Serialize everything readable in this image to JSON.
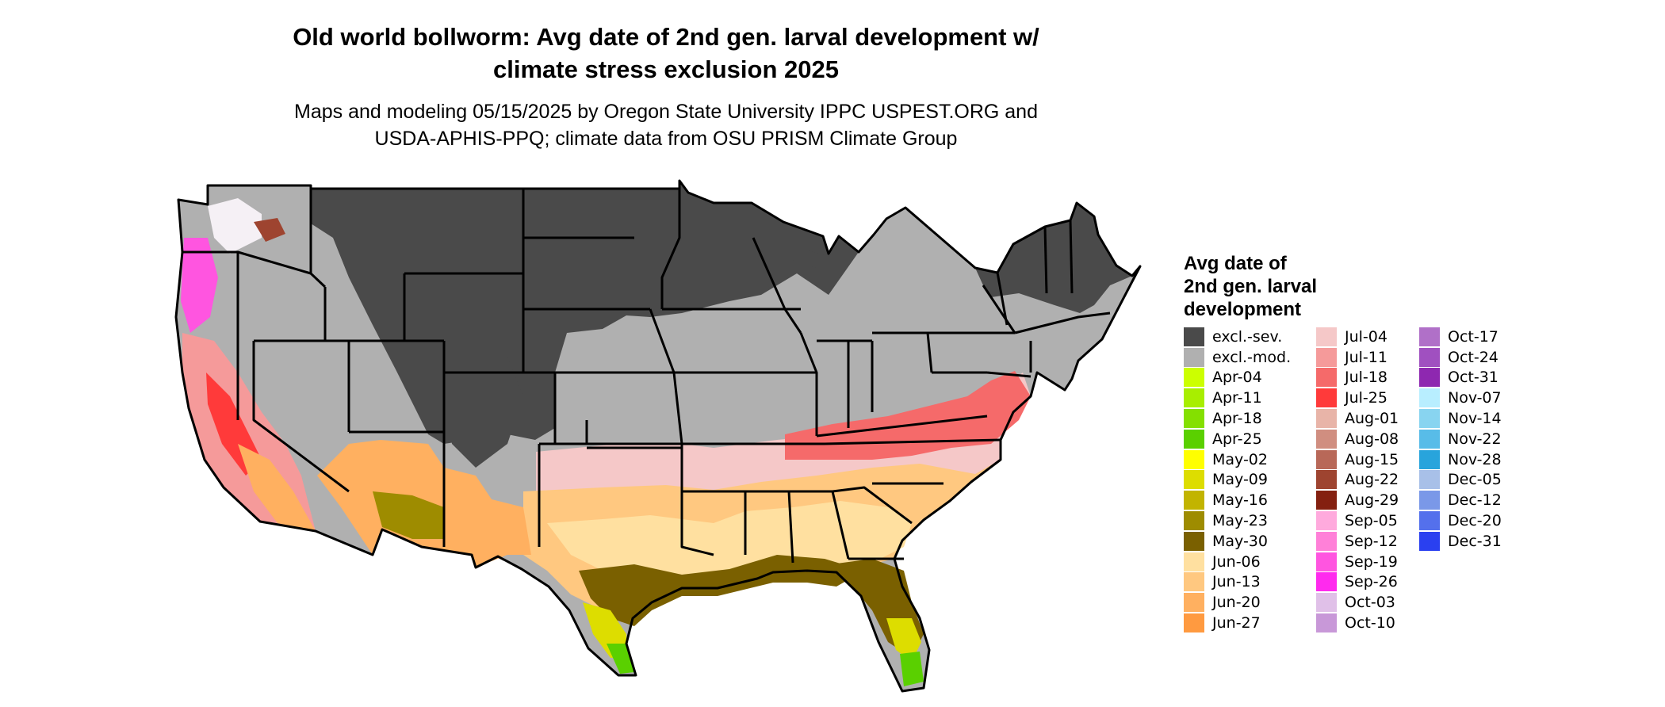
{
  "title_line1": "Old world bollworm: Avg date of 2nd gen. larval development w/",
  "title_line2": "climate stress exclusion 2025",
  "subtitle_line1": "Maps and modeling 05/15/2025 by Oregon State University IPPC USPEST.ORG and",
  "subtitle_line2": "USDA-APHIS-PPQ; climate data from OSU PRISM Climate Group",
  "legend": {
    "title_line1": "Avg date of",
    "title_line2": "2nd gen. larval",
    "title_line3": "development",
    "columns": [
      [
        {
          "label": "excl.-sev.",
          "color": "#4a4a4a"
        },
        {
          "label": "excl.-mod.",
          "color": "#b0b0b0"
        },
        {
          "label": "Apr-04",
          "color": "#ccff00"
        },
        {
          "label": "Apr-11",
          "color": "#a8ee00"
        },
        {
          "label": "Apr-18",
          "color": "#84e000"
        },
        {
          "label": "Apr-25",
          "color": "#5ad000"
        },
        {
          "label": "May-02",
          "color": "#ffff00"
        },
        {
          "label": "May-09",
          "color": "#dddd00"
        },
        {
          "label": "May-16",
          "color": "#c2b400"
        },
        {
          "label": "May-23",
          "color": "#9e8c00"
        },
        {
          "label": "May-30",
          "color": "#7a6000"
        },
        {
          "label": "Jun-06",
          "color": "#ffe0a0"
        },
        {
          "label": "Jun-13",
          "color": "#ffc880"
        },
        {
          "label": "Jun-20",
          "color": "#ffb060"
        },
        {
          "label": "Jun-27",
          "color": "#ff9a40"
        }
      ],
      [
        {
          "label": "Jul-04",
          "color": "#f5c8c8"
        },
        {
          "label": "Jul-11",
          "color": "#f59a9a"
        },
        {
          "label": "Jul-18",
          "color": "#f56a6a"
        },
        {
          "label": "Jul-25",
          "color": "#ff3a3a"
        },
        {
          "label": "Aug-01",
          "color": "#e8b4a8"
        },
        {
          "label": "Aug-08",
          "color": "#d08e80"
        },
        {
          "label": "Aug-15",
          "color": "#b86858"
        },
        {
          "label": "Aug-22",
          "color": "#9e4430"
        },
        {
          "label": "Aug-29",
          "color": "#842010"
        },
        {
          "label": "Sep-05",
          "color": "#ffaadd"
        },
        {
          "label": "Sep-12",
          "color": "#ff80d8"
        },
        {
          "label": "Sep-19",
          "color": "#ff55e0"
        },
        {
          "label": "Sep-26",
          "color": "#ff2aee"
        },
        {
          "label": "Oct-03",
          "color": "#e0c0e8"
        },
        {
          "label": "Oct-10",
          "color": "#c898d8"
        }
      ],
      [
        {
          "label": "Oct-17",
          "color": "#b070c8"
        },
        {
          "label": "Oct-24",
          "color": "#a050c0"
        },
        {
          "label": "Oct-31",
          "color": "#8e28b0"
        },
        {
          "label": "Nov-07",
          "color": "#b8eeff"
        },
        {
          "label": "Nov-14",
          "color": "#88d4f0"
        },
        {
          "label": "Nov-22",
          "color": "#58bce8"
        },
        {
          "label": "Nov-28",
          "color": "#28a4dc"
        },
        {
          "label": "Dec-05",
          "color": "#a8c0e8"
        },
        {
          "label": "Dec-12",
          "color": "#7a98e8"
        },
        {
          "label": "Dec-20",
          "color": "#5470ec"
        },
        {
          "label": "Dec-31",
          "color": "#2a40f0"
        }
      ]
    ]
  },
  "map_colors": {
    "severe": "#4a4a4a",
    "moderate": "#b0b0b0",
    "border": "#000000"
  }
}
